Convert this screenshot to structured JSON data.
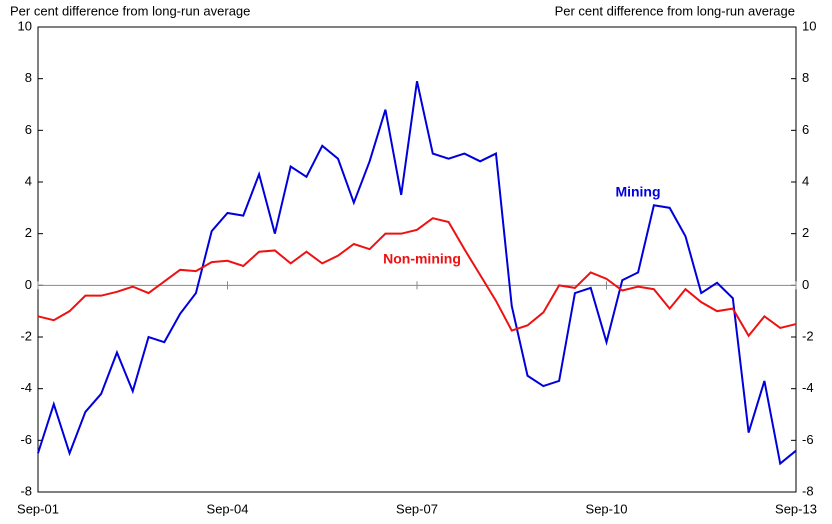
{
  "chart_data": {
    "type": "line",
    "y_label": "Per cent difference from long-run average",
    "y2_label": "Per cent difference from long-run average",
    "categories": [
      "Sep-01",
      null,
      null,
      null,
      null,
      null,
      null,
      null,
      null,
      null,
      null,
      null,
      "Sep-04",
      null,
      null,
      null,
      null,
      null,
      null,
      null,
      null,
      null,
      null,
      null,
      "Sep-07",
      null,
      null,
      null,
      null,
      null,
      null,
      null,
      null,
      null,
      null,
      null,
      "Sep-10",
      null,
      null,
      null,
      null,
      null,
      null,
      null,
      null,
      null,
      null,
      null,
      "Sep-13"
    ],
    "series": [
      {
        "name": "Mining",
        "color": "#0000dd",
        "values": [
          -6.5,
          -4.6,
          -6.5,
          -4.9,
          -4.2,
          -2.6,
          -4.1,
          -2.0,
          -2.2,
          -1.1,
          -0.3,
          2.1,
          2.8,
          2.7,
          4.3,
          2.0,
          4.6,
          4.2,
          5.4,
          4.9,
          3.2,
          4.8,
          6.8,
          3.5,
          7.9,
          5.1,
          4.9,
          5.1,
          4.8,
          5.1,
          -0.8,
          -3.5,
          -3.9,
          -3.7,
          -0.3,
          -0.1,
          -2.2,
          0.2,
          0.5,
          3.1,
          3.0,
          1.9,
          -0.3,
          0.1,
          -0.5,
          -5.7,
          -3.7,
          -6.9,
          -6.4
        ]
      },
      {
        "name": "Non-mining",
        "color": "#ee1111",
        "values": [
          -1.2,
          -1.35,
          -1.0,
          -0.4,
          -0.4,
          -0.25,
          -0.05,
          -0.3,
          0.15,
          0.6,
          0.55,
          0.9,
          0.95,
          0.75,
          1.3,
          1.35,
          0.85,
          1.3,
          0.85,
          1.15,
          1.6,
          1.4,
          2.0,
          2.0,
          2.15,
          2.6,
          2.45,
          1.4,
          0.4,
          -0.6,
          -1.75,
          -1.55,
          -1.05,
          0.0,
          -0.1,
          0.5,
          0.25,
          -0.2,
          -0.05,
          -0.15,
          -0.9,
          -0.15,
          -0.65,
          -1.0,
          -0.9,
          -1.95,
          -1.2,
          -1.65,
          -1.5
        ]
      }
    ],
    "ylim": [
      -8,
      10
    ],
    "yticks": [
      -8,
      -6,
      -4,
      -2,
      0,
      2,
      4,
      6,
      8,
      10
    ],
    "y2lim": [
      -8,
      10
    ],
    "y2ticks": [
      -8,
      -6,
      -4,
      -2,
      0,
      2,
      4,
      6,
      8,
      10
    ],
    "grid": false
  }
}
